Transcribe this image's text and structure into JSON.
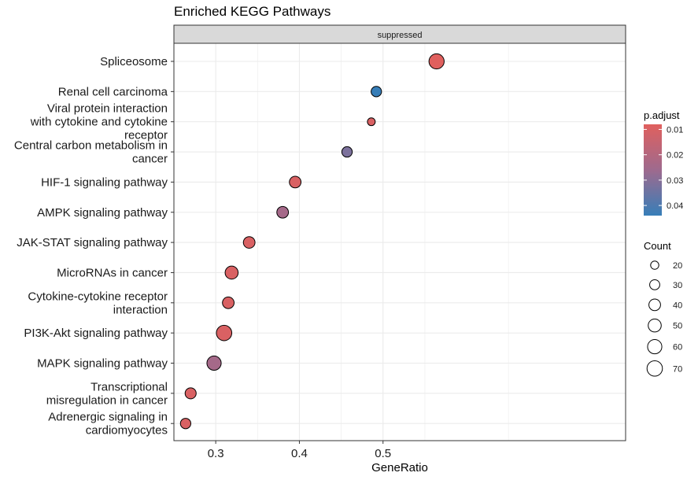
{
  "chart_data": {
    "type": "scatter",
    "title": "Enriched KEGG Pathways",
    "facet_label": "suppressed",
    "xlabel": "GeneRatio",
    "ylabel": "",
    "xlim": [
      0.25,
      0.79
    ],
    "xticks": [
      {
        "value": 0.3,
        "label": "0.3"
      },
      {
        "value": 0.4,
        "label": "0.4"
      },
      {
        "value": 0.5,
        "label": "0.5"
      }
    ],
    "grid": true,
    "points": [
      {
        "lines": [
          "Spliceosome"
        ],
        "gene_ratio": 0.564,
        "count": 68,
        "p_adjust": 0.008
      },
      {
        "lines": [
          "Renal cell carcinoma"
        ],
        "gene_ratio": 0.492,
        "count": 32,
        "p_adjust": 0.044
      },
      {
        "lines": [
          "Viral protein interaction",
          "with cytokine and cytokine",
          "receptor"
        ],
        "gene_ratio": 0.486,
        "count": 18,
        "p_adjust": 0.01
      },
      {
        "lines": [
          "Central carbon metabolism in",
          "cancer"
        ],
        "gene_ratio": 0.457,
        "count": 32,
        "p_adjust": 0.032
      },
      {
        "lines": [
          "HIF-1 signaling pathway"
        ],
        "gene_ratio": 0.395,
        "count": 40,
        "p_adjust": 0.01
      },
      {
        "lines": [
          "AMPK signaling pathway"
        ],
        "gene_ratio": 0.38,
        "count": 40,
        "p_adjust": 0.024
      },
      {
        "lines": [
          "JAK-STAT signaling pathway"
        ],
        "gene_ratio": 0.34,
        "count": 40,
        "p_adjust": 0.01
      },
      {
        "lines": [
          "MicroRNAs in cancer"
        ],
        "gene_ratio": 0.319,
        "count": 50,
        "p_adjust": 0.01
      },
      {
        "lines": [
          "Cytokine-cytokine receptor",
          "interaction"
        ],
        "gene_ratio": 0.315,
        "count": 40,
        "p_adjust": 0.01
      },
      {
        "lines": [
          "PI3K-Akt signaling pathway"
        ],
        "gene_ratio": 0.31,
        "count": 70,
        "p_adjust": 0.01
      },
      {
        "lines": [
          "MAPK signaling pathway"
        ],
        "gene_ratio": 0.298,
        "count": 60,
        "p_adjust": 0.024
      },
      {
        "lines": [
          "Transcriptional",
          "misregulation in cancer"
        ],
        "gene_ratio": 0.27,
        "count": 36,
        "p_adjust": 0.01
      },
      {
        "lines": [
          "Adrenergic signaling in",
          "cardiomyocytes"
        ],
        "gene_ratio": 0.264,
        "count": 32,
        "p_adjust": 0.01
      }
    ],
    "color_legend": {
      "title": "p.adjust",
      "range": [
        0.008,
        0.044
      ],
      "low_color": "#E0605E",
      "mid_color": "#9E6A8E",
      "high_color": "#377EB8",
      "ticks": [
        {
          "value": 0.01,
          "label": "0.01"
        },
        {
          "value": 0.02,
          "label": "0.02"
        },
        {
          "value": 0.03,
          "label": "0.03"
        },
        {
          "value": 0.04,
          "label": "0.04"
        }
      ]
    },
    "size_legend": {
      "title": "Count",
      "entries": [
        {
          "value": 20,
          "label": "20"
        },
        {
          "value": 30,
          "label": "30"
        },
        {
          "value": 40,
          "label": "40"
        },
        {
          "value": 50,
          "label": "50"
        },
        {
          "value": 60,
          "label": "60"
        },
        {
          "value": 70,
          "label": "70"
        }
      ]
    },
    "legend_position": "right"
  }
}
